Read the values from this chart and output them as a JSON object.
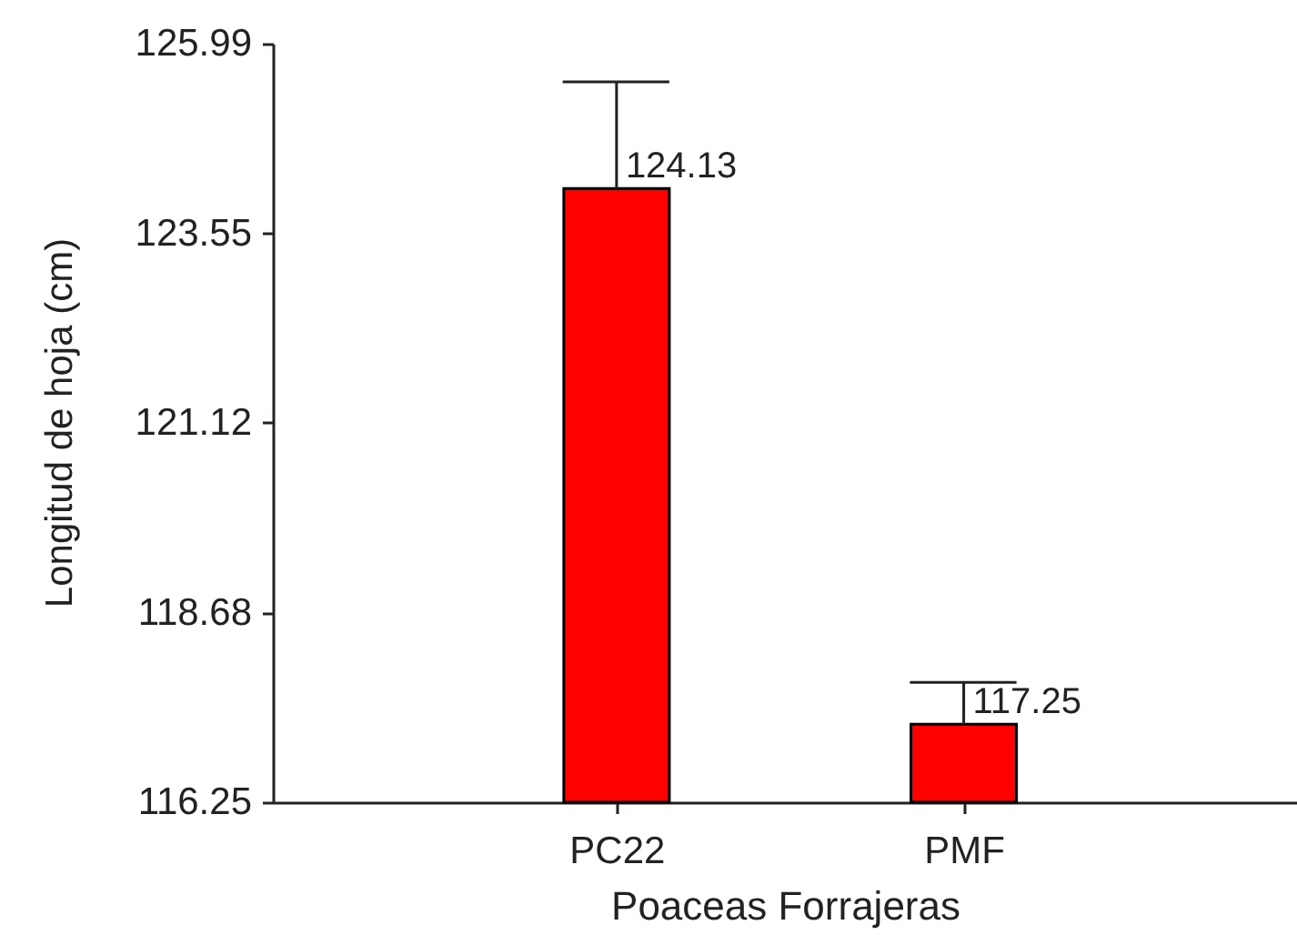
{
  "chart_data": {
    "type": "bar",
    "xlabel": "Poaceas Forrajeras",
    "ylabel": "Longitud de hoja (cm)",
    "categories": [
      "PC22",
      "PMF"
    ],
    "values": [
      124.13,
      117.25
    ],
    "errors": [
      [
        124.13,
        125.5
      ],
      [
        117.25,
        117.79
      ]
    ],
    "color": "#ff0000",
    "data_labels": true,
    "ylim": [
      116.25,
      125.99
    ],
    "yticks": [
      116.25,
      118.68,
      121.12,
      123.55,
      125.99
    ]
  }
}
